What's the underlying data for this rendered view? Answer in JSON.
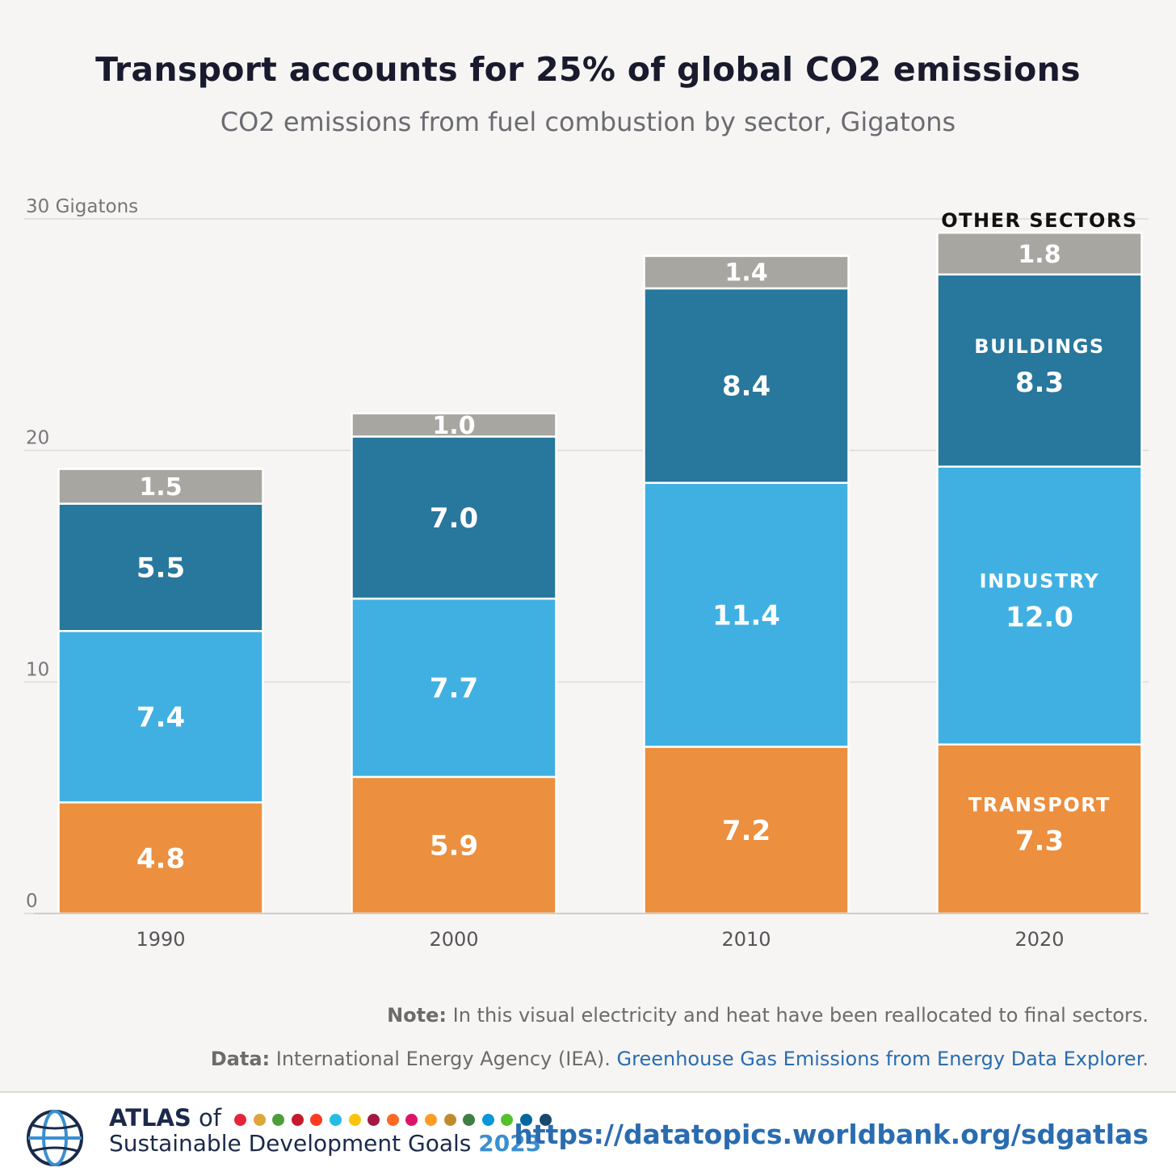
{
  "header": {
    "title": "Transport accounts for 25% of global CO2 emissions",
    "subtitle": "CO2 emissions from fuel combustion by sector, Gigatons"
  },
  "chart_data": {
    "type": "bar",
    "stacked": true,
    "categories": [
      "1990",
      "2000",
      "2010",
      "2020"
    ],
    "series": [
      {
        "name": "TRANSPORT",
        "color": "#ec8f3e",
        "values": [
          4.8,
          5.9,
          7.2,
          7.3
        ],
        "labels": [
          "4.8",
          "5.9",
          "7.2",
          "7.3"
        ]
      },
      {
        "name": "INDUSTRY",
        "color": "#40b0e2",
        "values": [
          7.4,
          7.7,
          11.4,
          12.0
        ],
        "labels": [
          "7.4",
          "7.7",
          "11.4",
          "12.0"
        ]
      },
      {
        "name": "BUILDINGS",
        "color": "#28779c",
        "values": [
          5.5,
          7.0,
          8.4,
          8.3
        ],
        "labels": [
          "5.5",
          "7.0",
          "8.4",
          "8.3"
        ]
      },
      {
        "name": "OTHER SECTORS",
        "color": "#a8a6a1",
        "values": [
          1.5,
          1.0,
          1.4,
          1.8
        ],
        "labels": [
          "1.5",
          "1.0",
          "1.4",
          "1.8"
        ]
      }
    ],
    "y_ticks": [
      {
        "value": 0,
        "label": "0"
      },
      {
        "value": 10,
        "label": "10"
      },
      {
        "value": 20,
        "label": "20"
      },
      {
        "value": 30,
        "label": "30 Gigatons"
      }
    ],
    "ylim": [
      0,
      30
    ],
    "grid": true,
    "series_labels_in_last_bar": true
  },
  "footnotes": {
    "note_label": "Note:",
    "note_text": " In this visual electricity and heat have been reallocated to final sectors.",
    "data_label": "Data:",
    "data_text": " International Energy Agency (IEA). ",
    "data_link": "Greenhouse Gas Emissions from Energy Data Explorer",
    "data_end": "."
  },
  "footer": {
    "atlas_word": "ATLAS",
    "atlas_of": " of",
    "atlas_subtitle": "Sustainable Development Goals ",
    "atlas_year": "2023",
    "url": "https://datatopics.worldbank.org/sdgatlas",
    "sdg_colors": [
      "#e5243b",
      "#dda63a",
      "#4c9f38",
      "#c5192d",
      "#ff3a21",
      "#26bde2",
      "#fcc30b",
      "#a21942",
      "#fd6925",
      "#dd1367",
      "#fd9d24",
      "#bf8b2e",
      "#3f7e44",
      "#0a97d9",
      "#56c02b",
      "#00689d",
      "#19486a"
    ]
  }
}
